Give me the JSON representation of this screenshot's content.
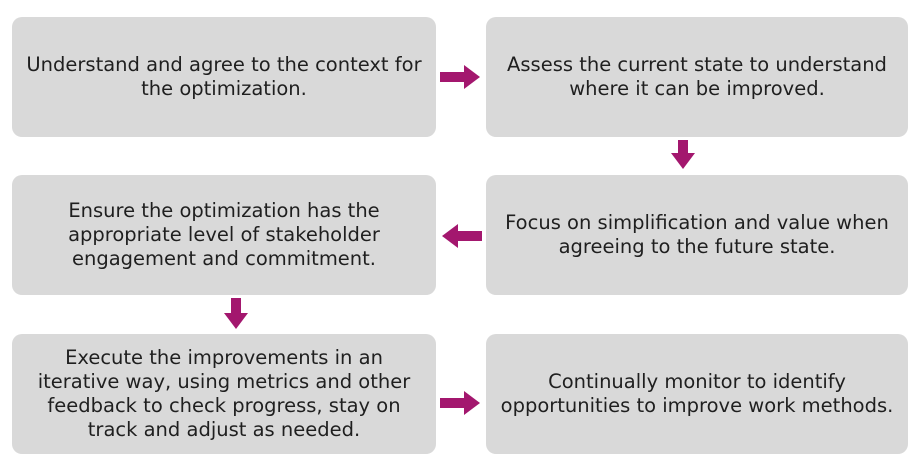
{
  "steps": [
    {
      "text": "Understand and agree to the context for the optimization."
    },
    {
      "text": "Assess the current state to understand where it can be improved."
    },
    {
      "text": "Focus on simplification and value when agreeing to the future state."
    },
    {
      "text": "Ensure the optimization has the appropriate level of stakeholder engagement and commitment."
    },
    {
      "text": "Execute the improvements in an iterative way, using metrics and other feedback to check progress, stay on track and adjust as needed."
    },
    {
      "text": "Continually monitor to identify opportunities to improve work methods."
    }
  ],
  "colors": {
    "box": "#d9d9d9",
    "arrow": "#a3176e",
    "text": "#1f1f1f"
  }
}
